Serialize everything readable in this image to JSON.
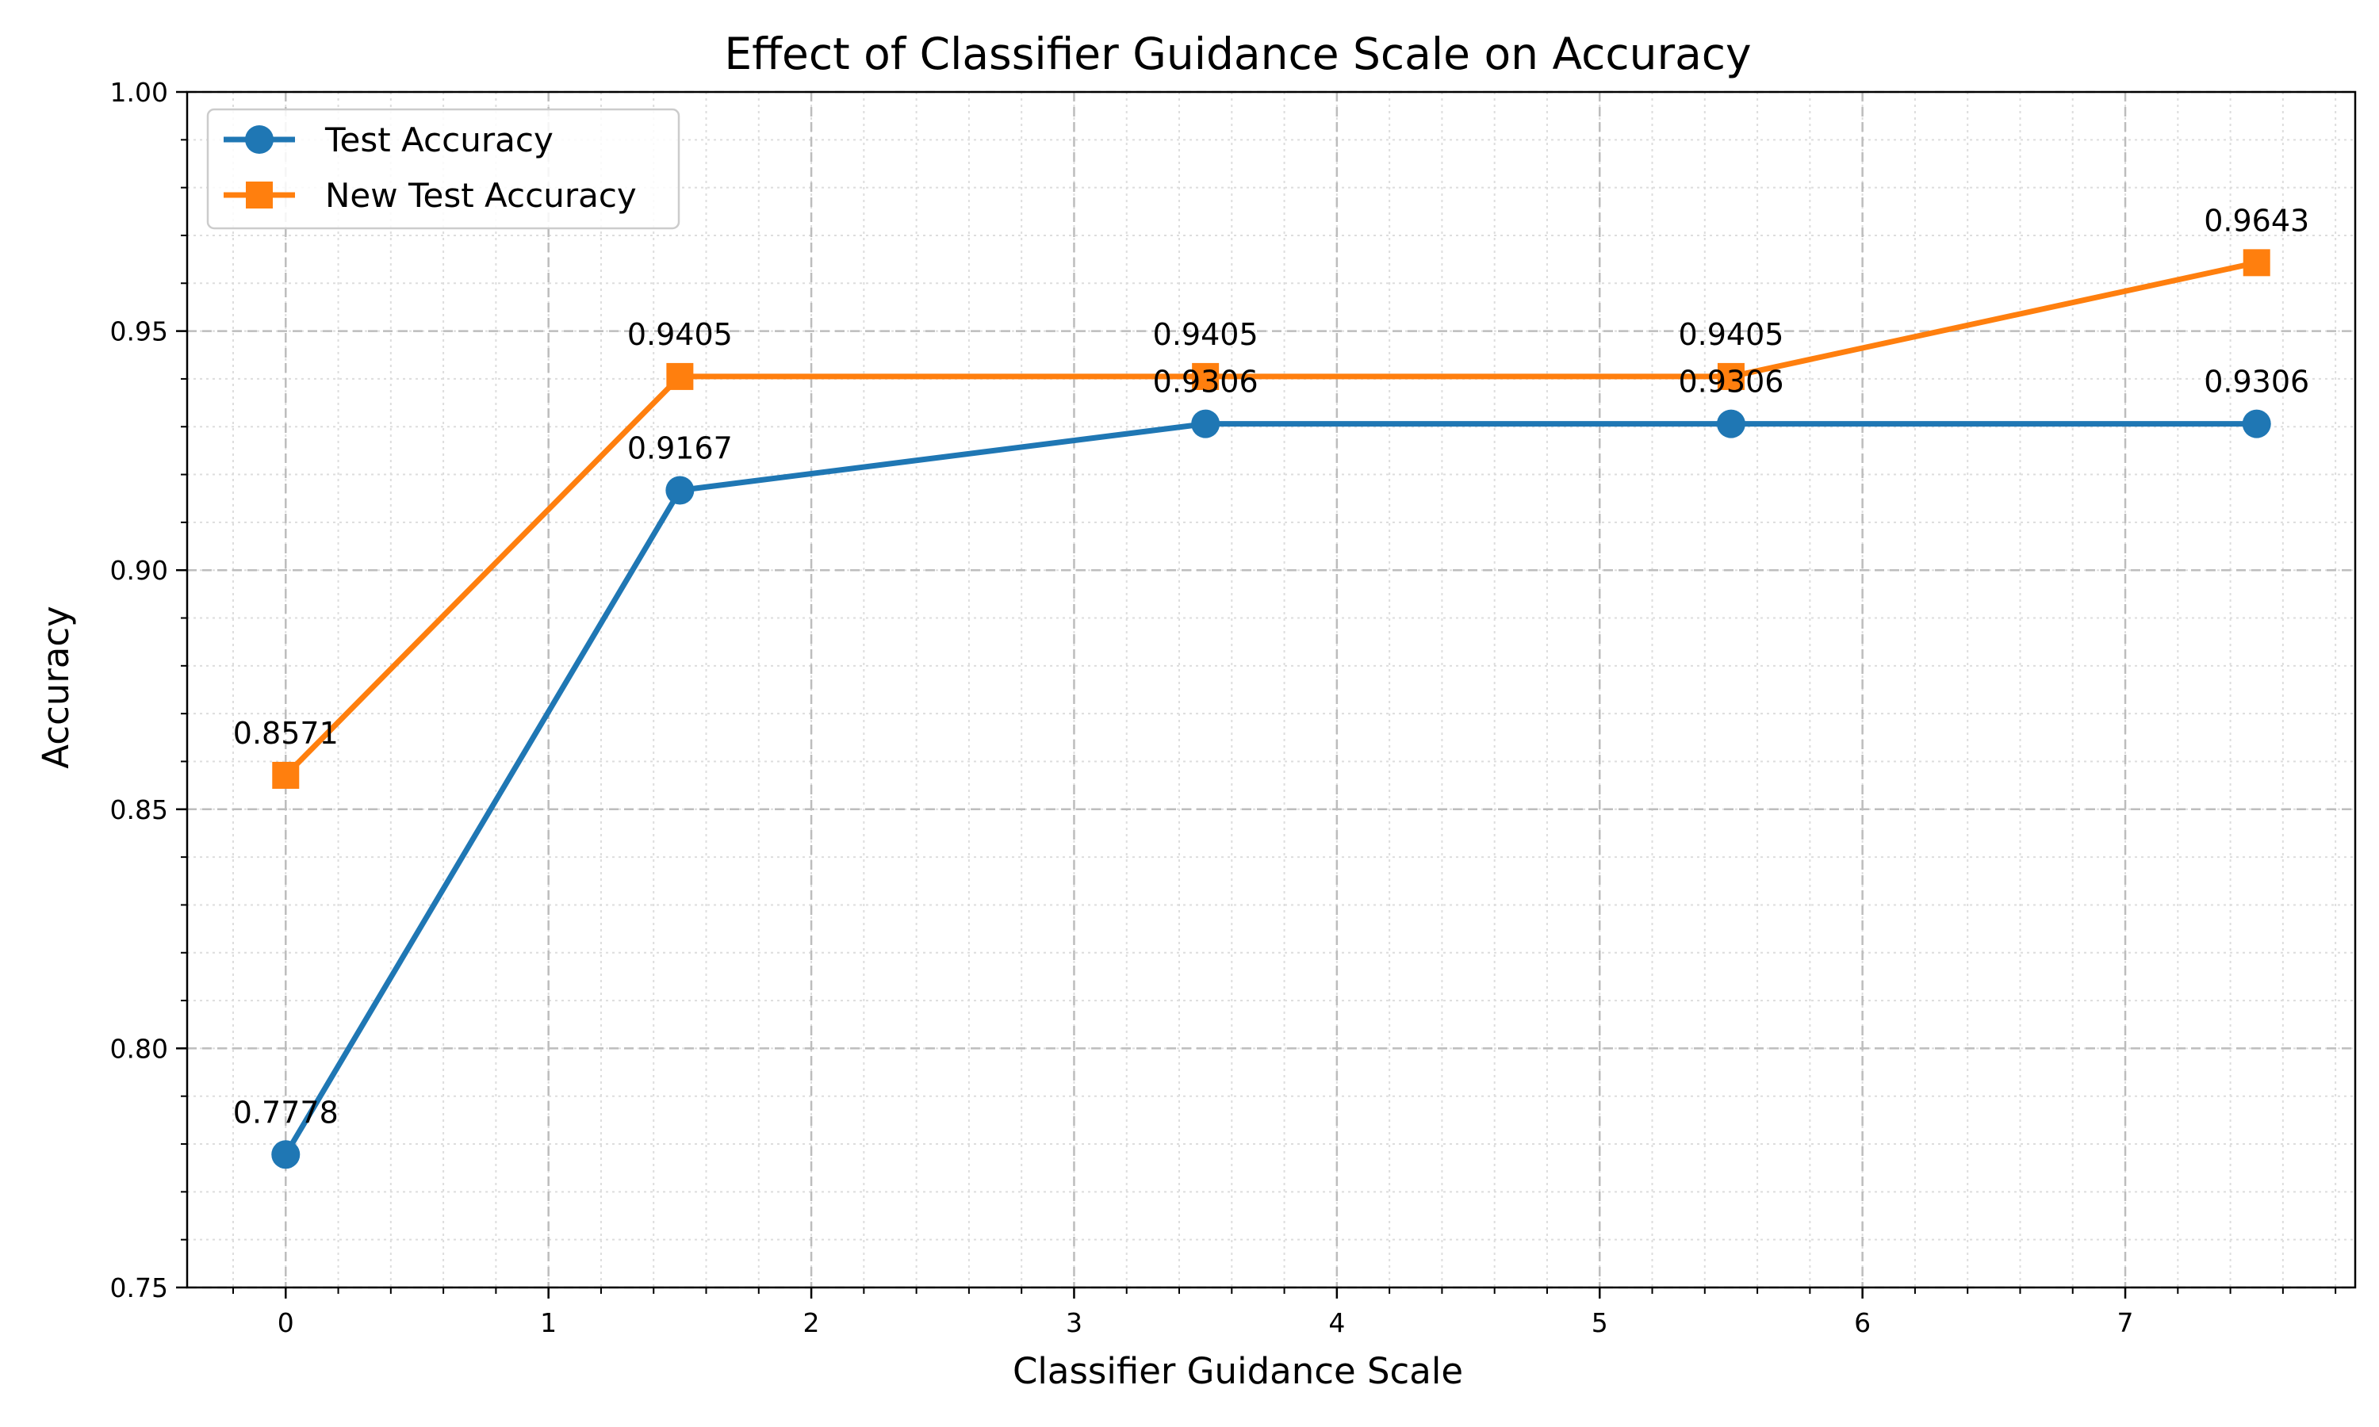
{
  "chart_data": {
    "type": "line",
    "title": "Effect of Classifier Guidance Scale on Accuracy",
    "xlabel": "Classifier Guidance Scale",
    "ylabel": "Accuracy",
    "xlim": [
      -0.375,
      7.875
    ],
    "ylim": [
      0.75,
      1.0
    ],
    "xticks": [
      0,
      1,
      2,
      3,
      4,
      5,
      6,
      7
    ],
    "xtick_labels": [
      "0",
      "1",
      "2",
      "3",
      "4",
      "5",
      "6",
      "7"
    ],
    "yticks": [
      0.75,
      0.8,
      0.85,
      0.9,
      0.95,
      1.0
    ],
    "ytick_labels": [
      "0.75",
      "0.80",
      "0.85",
      "0.90",
      "0.95",
      "1.00"
    ],
    "grid": true,
    "minor_grid": true,
    "legend_position": "upper-left",
    "series": [
      {
        "name": "Test Accuracy",
        "color": "#1f77b4",
        "marker": "circle",
        "x": [
          0,
          1.5,
          3.5,
          5.5,
          7.5
        ],
        "y": [
          0.7778,
          0.9167,
          0.9306,
          0.9306,
          0.9306
        ],
        "labels": [
          "0.7778",
          "0.9167",
          "0.9306",
          "0.9306",
          "0.9306"
        ]
      },
      {
        "name": "New Test Accuracy",
        "color": "#ff7f0e",
        "marker": "square",
        "x": [
          0,
          1.5,
          3.5,
          5.5,
          7.5
        ],
        "y": [
          0.8571,
          0.9405,
          0.9405,
          0.9405,
          0.9643
        ],
        "labels": [
          "0.8571",
          "0.9405",
          "0.9405",
          "0.9405",
          "0.9643"
        ]
      }
    ]
  }
}
